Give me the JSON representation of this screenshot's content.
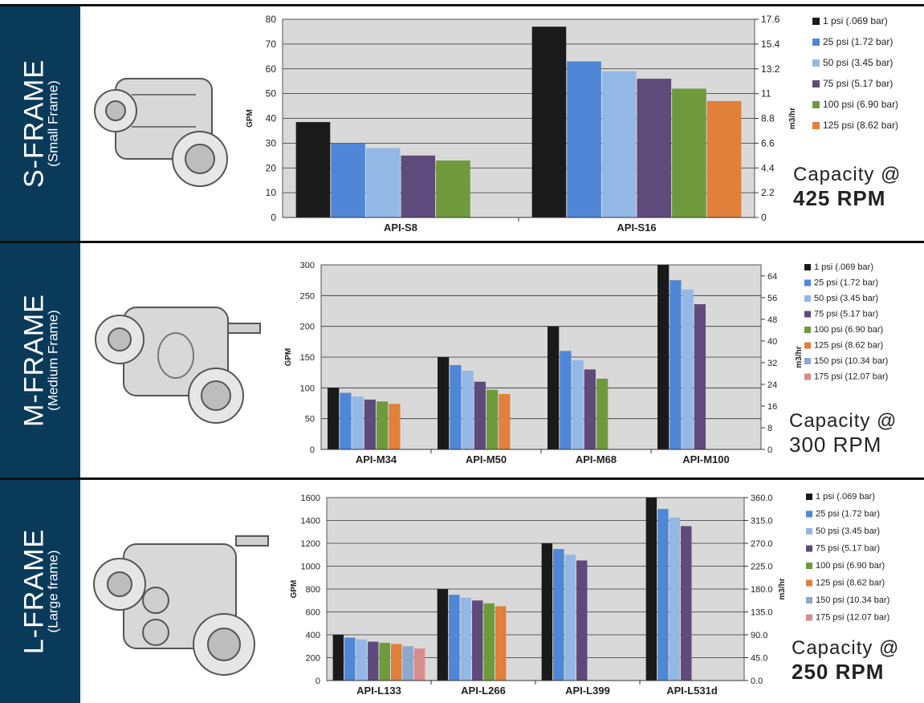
{
  "panels": [
    {
      "frame_title": "S-FRAME",
      "frame_subtitle": "(Small Frame)",
      "capacity_label": "Capacity @",
      "rpm": "425 RPM",
      "rpm_bold": true,
      "pump_icon": "pump-illustration-small",
      "chart_data": {
        "type": "bar",
        "categories": [
          "API-S8",
          "API-S16"
        ],
        "series": [
          {
            "name": "1 psi (.069 bar)",
            "values": [
              38.5,
              77
            ],
            "color": "#1a1a1a"
          },
          {
            "name": "25 psi (1.72 bar)",
            "values": [
              30,
              63
            ],
            "color": "#4f87d6"
          },
          {
            "name": "50 psi (3.45 bar)",
            "values": [
              28,
              59
            ],
            "color": "#94b8e6"
          },
          {
            "name": "75 psi (5.17 bar)",
            "values": [
              25,
              56
            ],
            "color": "#5f4a7c"
          },
          {
            "name": "100 psi (6.90 bar)",
            "values": [
              23,
              52
            ],
            "color": "#6e9a3c"
          },
          {
            "name": "125 psi (8.62 bar)",
            "values": [
              null,
              47
            ],
            "color": "#e0803a"
          }
        ],
        "ylabel": "GPM",
        "y2label": "m3/hr",
        "ylim": [
          0,
          80
        ],
        "yticks": [
          "0",
          "10",
          "20",
          "30",
          "40",
          "50",
          "60",
          "70",
          "80"
        ],
        "y2ticks": [
          "0",
          "2.2",
          "4.4",
          "6.6",
          "8.8",
          "11",
          "13.2",
          "15.4",
          "17.6"
        ],
        "grid": true,
        "legend": "right"
      }
    },
    {
      "frame_title": "M-FRAME",
      "frame_subtitle": "(Medium Frame)",
      "capacity_label": "Capacity @",
      "rpm": "300 RPM",
      "rpm_bold": false,
      "pump_icon": "pump-illustration-medium",
      "chart_data": {
        "type": "bar",
        "categories": [
          "API-M34",
          "API-M50",
          "API-M68",
          "API-M100"
        ],
        "series": [
          {
            "name": "1 psi (.069 bar)",
            "values": [
              100,
              150,
              200,
              300
            ],
            "color": "#1a1a1a"
          },
          {
            "name": "25 psi (1.72 bar)",
            "values": [
              92,
              137,
              160,
              275
            ],
            "color": "#4f87d6"
          },
          {
            "name": "50 psi (3.45 bar)",
            "values": [
              86,
              128,
              145,
              260
            ],
            "color": "#94b8e6"
          },
          {
            "name": "75 psi (5.17 bar)",
            "values": [
              81,
              110,
              130,
              236
            ],
            "color": "#5f4a7c"
          },
          {
            "name": "100 psi (6.90 bar)",
            "values": [
              78,
              97,
              115,
              null
            ],
            "color": "#6e9a3c"
          },
          {
            "name": "125 psi (8.62 bar)",
            "values": [
              74,
              90,
              null,
              null
            ],
            "color": "#e0803a"
          },
          {
            "name": "150 psi (10.34 bar)",
            "values": [
              null,
              null,
              null,
              null
            ],
            "color": "#8ea7cf"
          },
          {
            "name": "175 psi (12.07 bar)",
            "values": [
              null,
              null,
              null,
              null
            ],
            "color": "#d98c8c"
          }
        ],
        "ylabel": "GPM",
        "y2label": "m3/hr",
        "ylim": [
          0,
          300
        ],
        "yticks": [
          "0",
          "50",
          "100",
          "150",
          "200",
          "250",
          "300"
        ],
        "y2ticks": [
          "0",
          "8",
          "16",
          "24",
          "32",
          "40",
          "48",
          "56",
          "64"
        ],
        "y2max": 68.1,
        "grid": true,
        "legend": "right"
      }
    },
    {
      "frame_title": "L-FRAME",
      "frame_subtitle": "(Large frame)",
      "capacity_label": "Capacity @",
      "rpm": "250 RPM",
      "rpm_bold": true,
      "pump_icon": "pump-illustration-large",
      "chart_data": {
        "type": "bar",
        "categories": [
          "API-L133",
          "API-L266",
          "API-L399",
          "API-L531d"
        ],
        "series": [
          {
            "name": "1 psi (.069 bar)",
            "values": [
              400,
              800,
              1200,
              1600
            ],
            "color": "#1a1a1a"
          },
          {
            "name": "25 psi (1.72 bar)",
            "values": [
              375,
              750,
              1150,
              1500
            ],
            "color": "#4f87d6"
          },
          {
            "name": "50 psi (3.45 bar)",
            "values": [
              360,
              725,
              1100,
              1425
            ],
            "color": "#94b8e6"
          },
          {
            "name": "75 psi (5.17 bar)",
            "values": [
              340,
              700,
              1050,
              1350
            ],
            "color": "#5f4a7c"
          },
          {
            "name": "100 psi (6.90 bar)",
            "values": [
              330,
              675,
              null,
              null
            ],
            "color": "#6e9a3c"
          },
          {
            "name": "125 psi (8.62 bar)",
            "values": [
              320,
              650,
              null,
              null
            ],
            "color": "#e0803a"
          },
          {
            "name": "150 psi (10.34 bar)",
            "values": [
              300,
              null,
              null,
              null
            ],
            "color": "#8ea7cf"
          },
          {
            "name": "175 psi (12.07 bar)",
            "values": [
              280,
              null,
              null,
              null
            ],
            "color": "#d98c8c"
          }
        ],
        "ylabel": "GPM",
        "y2label": "m3/hr",
        "ylim": [
          0,
          1600
        ],
        "yticks": [
          "0",
          "200",
          "400",
          "600",
          "800",
          "1000",
          "1200",
          "1400",
          "1600"
        ],
        "y2ticks": [
          "0.0",
          "45.0",
          "90.0",
          "135.0",
          "180.0",
          "225.0",
          "270.0",
          "315.0",
          "360.0"
        ],
        "grid": true,
        "legend": "right"
      }
    }
  ]
}
